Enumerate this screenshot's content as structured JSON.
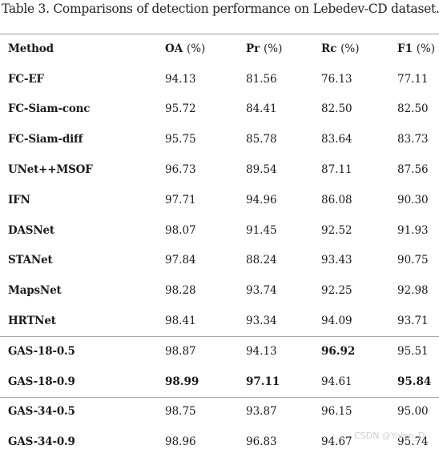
{
  "caption": "Table 3. Comparisons of detection performance on Lebedev-CD dataset.",
  "table": {
    "headers": {
      "method": "Method",
      "oa": "OA",
      "oa_unit": "(%)",
      "pr": "Pr",
      "pr_unit": "(%)",
      "rc": "Rc",
      "rc_unit": "(%)",
      "f1": "F1",
      "f1_unit": "(%)"
    },
    "rows": [
      {
        "method": "FC-EF",
        "oa": "94.13",
        "pr": "81.56",
        "rc": "76.13",
        "f1": "77.11"
      },
      {
        "method": "FC-Siam-conc",
        "oa": "95.72",
        "pr": "84.41",
        "rc": "82.50",
        "f1": "82.50"
      },
      {
        "method": "FC-Siam-diff",
        "oa": "95.75",
        "pr": "85.78",
        "rc": "83.64",
        "f1": "83.73"
      },
      {
        "method": "UNet++MSOF",
        "oa": "96.73",
        "pr": "89.54",
        "rc": "87.11",
        "f1": "87.56"
      },
      {
        "method": "IFN",
        "oa": "97.71",
        "pr": "94.96",
        "rc": "86.08",
        "f1": "90.30"
      },
      {
        "method": "DASNet",
        "oa": "98.07",
        "pr": "91.45",
        "rc": "92.52",
        "f1": "91.93"
      },
      {
        "method": "STANet",
        "oa": "97.84",
        "pr": "88.24",
        "rc": "93.43",
        "f1": "90.75"
      },
      {
        "method": "MapsNet",
        "oa": "98.28",
        "pr": "93.74",
        "rc": "92.25",
        "f1": "92.98"
      },
      {
        "method": "HRTNet",
        "oa": "98.41",
        "pr": "93.34",
        "rc": "94.09",
        "f1": "93.71"
      },
      {
        "method": "GAS-18-0.5",
        "oa": "98.87",
        "pr": "94.13",
        "rc": "96.92",
        "f1": "95.51"
      },
      {
        "method": "GAS-18-0.9",
        "oa": "98.99",
        "pr": "97.11",
        "rc": "94.61",
        "f1": "95.84"
      },
      {
        "method": "GAS-34-0.5",
        "oa": "98.75",
        "pr": "93.87",
        "rc": "96.15",
        "f1": "95.00"
      },
      {
        "method": "GAS-34-0.9",
        "oa": "98.96",
        "pr": "96.83",
        "rc": "94.67",
        "f1": "95.74"
      }
    ],
    "bold_cells": [
      "9.rc",
      "10.oa",
      "10.pr",
      "10.f1"
    ]
  },
  "watermark": "CSDN @Yolen_D"
}
